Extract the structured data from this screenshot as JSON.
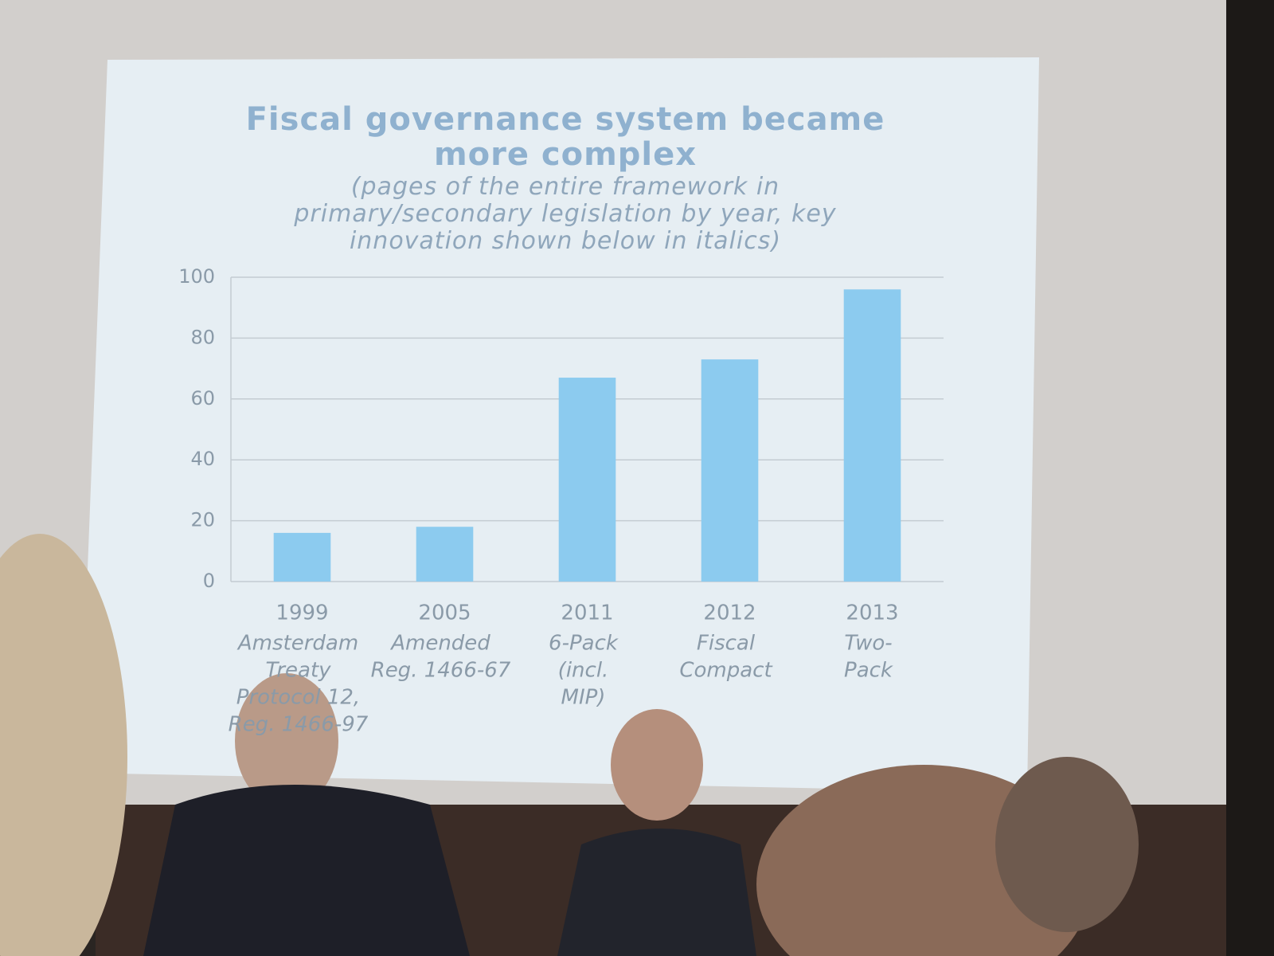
{
  "chart_data": {
    "type": "bar",
    "title": "Fiscal governance system became more complex",
    "subtitle": "(pages of the entire framework in primary/secondary legislation by year, key innovation shown below in italics)",
    "categories": [
      "1999",
      "2005",
      "2011",
      "2012",
      "2013"
    ],
    "category_notes": [
      [
        "Amsterdam",
        "Treaty",
        "Protocol 12,",
        "Reg. 1466-97"
      ],
      [
        "Amended",
        "Reg. 1466-67"
      ],
      [
        "6-Pack",
        "(incl.",
        "MIP)"
      ],
      [
        "Fiscal",
        "Compact"
      ],
      [
        "Two-",
        "Pack"
      ]
    ],
    "values": [
      16,
      18,
      67,
      73,
      96
    ],
    "color": "#8ccbef",
    "ylim": [
      0,
      100
    ],
    "yticks": [
      0,
      20,
      40,
      60,
      80,
      100
    ],
    "grid": true
  }
}
